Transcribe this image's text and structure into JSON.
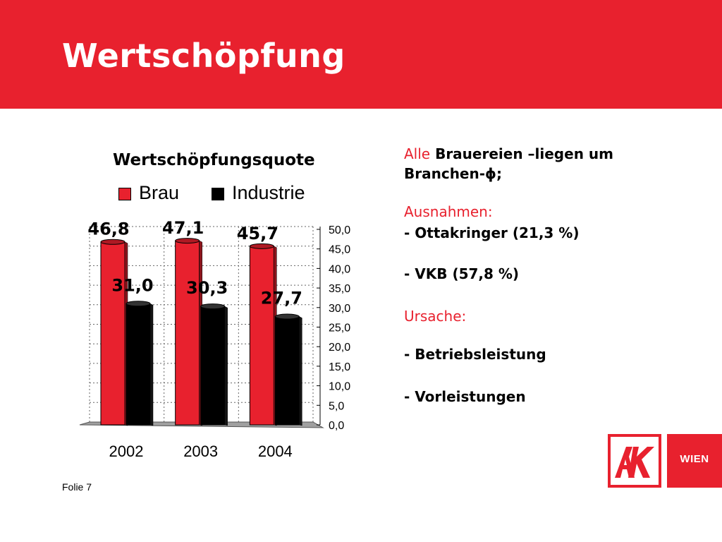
{
  "header": {
    "title": "Wertschöpfung",
    "color": "#e8212e"
  },
  "chart_data": {
    "type": "bar",
    "title": "Wertschöpfungsquote",
    "categories": [
      "2002",
      "2003",
      "2004"
    ],
    "series": [
      {
        "name": "Brau",
        "values": [
          46.8,
          47.1,
          45.7
        ],
        "labels": [
          "46,8",
          "47,1",
          "45,7"
        ],
        "color": "#e8212e"
      },
      {
        "name": "Industrie",
        "values": [
          31.0,
          30.3,
          27.7
        ],
        "labels": [
          "31,0",
          "30,3",
          "27,7"
        ],
        "color": "#000000"
      }
    ],
    "ylim": [
      0,
      50
    ],
    "yticks": [
      "0,0",
      "5,0",
      "10,0",
      "15,0",
      "20,0",
      "25,0",
      "30,0",
      "35,0",
      "40,0",
      "45,0",
      "50,0"
    ],
    "y_axis_side": "right",
    "grid": true,
    "legend_position": "top",
    "style": "3d"
  },
  "side": {
    "alle": "Alle",
    "line1_rest": "Brauereien –liegen um",
    "line2": "Branchen-ϕ;",
    "ausnahmen": "Ausnahmen:",
    "ottakringer": "- Ottakringer (21,3 %)",
    "vkb": "- VKB (57,8 %)",
    "ursache": "Ursache:",
    "betrieb": "- Betriebsleistung",
    "vorleistungen": "- Vorleistungen"
  },
  "logo": {
    "mark": "AK",
    "text": "WIEN"
  },
  "footer": {
    "slide_label": "Folie 7"
  }
}
